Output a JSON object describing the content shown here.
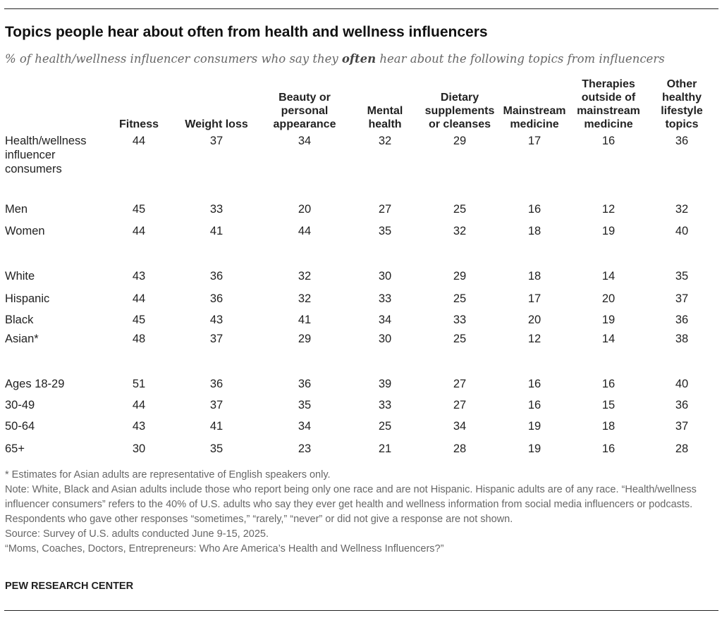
{
  "title": "Topics people hear about often from health and wellness influencers",
  "subtitle": {
    "before": "% of health/wellness influencer consumers who say they ",
    "emphasis": "often",
    "after": " hear about the following topics from influencers"
  },
  "chart_data": {
    "type": "table",
    "columns": [
      {
        "lines": [
          "Fitness"
        ]
      },
      {
        "lines": [
          "Weight loss"
        ]
      },
      {
        "lines": [
          "Beauty or",
          "personal",
          "appearance"
        ]
      },
      {
        "lines": [
          "Mental",
          "health"
        ]
      },
      {
        "lines": [
          "Dietary",
          "supplements",
          "or cleanses"
        ]
      },
      {
        "lines": [
          "Mainstream",
          "medicine"
        ]
      },
      {
        "lines": [
          "Therapies",
          "outside of",
          "mainstream",
          "medicine"
        ]
      },
      {
        "lines": [
          "Other",
          "healthy",
          "lifestyle",
          "topics"
        ]
      }
    ],
    "rows": [
      {
        "label": [
          "Health/wellness",
          "influencer",
          "consumers"
        ],
        "values": [
          44,
          37,
          34,
          32,
          29,
          17,
          16,
          36
        ]
      },
      {
        "label": [
          "Men"
        ],
        "values": [
          45,
          33,
          20,
          27,
          25,
          16,
          12,
          32
        ]
      },
      {
        "label": [
          "Women"
        ],
        "values": [
          44,
          41,
          44,
          35,
          32,
          18,
          19,
          40
        ]
      },
      {
        "label": [
          "White"
        ],
        "values": [
          43,
          36,
          32,
          30,
          29,
          18,
          14,
          35
        ]
      },
      {
        "label": [
          "Hispanic"
        ],
        "values": [
          44,
          36,
          32,
          33,
          25,
          17,
          20,
          37
        ]
      },
      {
        "label": [
          "Black"
        ],
        "values": [
          45,
          43,
          41,
          34,
          33,
          20,
          19,
          36
        ]
      },
      {
        "label": [
          "Asian*"
        ],
        "values": [
          48,
          37,
          29,
          30,
          25,
          12,
          14,
          38
        ]
      },
      {
        "label": [
          "Ages 18-29"
        ],
        "values": [
          51,
          36,
          36,
          39,
          27,
          16,
          16,
          40
        ]
      },
      {
        "label": [
          "30-49"
        ],
        "values": [
          44,
          37,
          35,
          33,
          27,
          16,
          15,
          36
        ]
      },
      {
        "label": [
          "50-64"
        ],
        "values": [
          43,
          41,
          34,
          25,
          34,
          19,
          18,
          37
        ]
      },
      {
        "label": [
          "65+"
        ],
        "values": [
          30,
          35,
          23,
          21,
          28,
          19,
          16,
          28
        ]
      }
    ]
  },
  "notes": [
    "* Estimates for Asian adults are representative of English speakers only.",
    "Note: White, Black and Asian adults include those who report being only one race and are not Hispanic. Hispanic adults are of any race. “Health/wellness influencer consumers” refers to the 40% of U.S. adults who say they ever get health and wellness information from social media influencers or podcasts. Respondents who gave other responses “sometimes,” “rarely,” “never” or did not give a response are not shown.",
    "Source: Survey of U.S. adults conducted June 9-15, 2025.",
    "“Moms, Coaches, Doctors, Entrepreneurs: Who Are America’s Health and Wellness Influencers?”"
  ],
  "brand": "PEW RESEARCH CENTER"
}
